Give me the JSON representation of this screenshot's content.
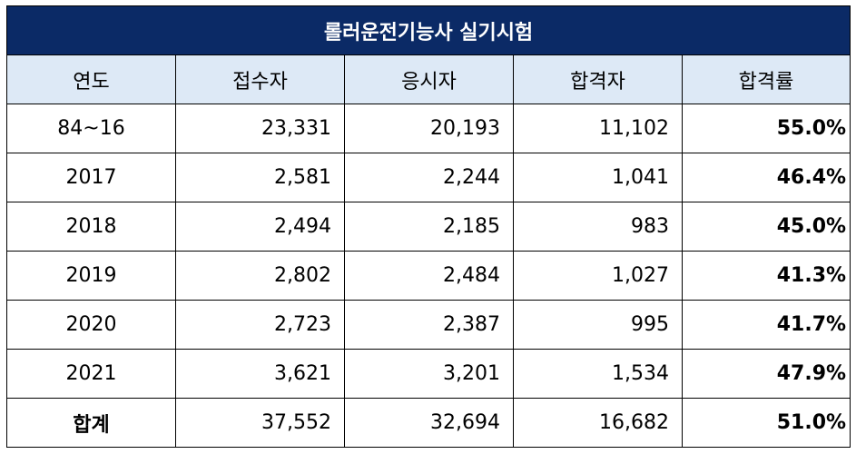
{
  "title": "롤러운전기능사 실기시험",
  "colors": {
    "title_bg": "#0b2a66",
    "header_bg": "#dde9f6",
    "title_text": "#ffffff",
    "border": "#000000"
  },
  "headers": [
    "연도",
    "접수자",
    "응시자",
    "합격자",
    "합격률"
  ],
  "rows": [
    {
      "year": "84~16",
      "applicants": "23,331",
      "examinees": "20,193",
      "passed": "11,102",
      "rate": "55.0%"
    },
    {
      "year": "2017",
      "applicants": "2,581",
      "examinees": "2,244",
      "passed": "1,041",
      "rate": "46.4%"
    },
    {
      "year": "2018",
      "applicants": "2,494",
      "examinees": "2,185",
      "passed": "983",
      "rate": "45.0%"
    },
    {
      "year": "2019",
      "applicants": "2,802",
      "examinees": "2,484",
      "passed": "1,027",
      "rate": "41.3%"
    },
    {
      "year": "2020",
      "applicants": "2,723",
      "examinees": "2,387",
      "passed": "995",
      "rate": "41.7%"
    },
    {
      "year": "2021",
      "applicants": "3,621",
      "examinees": "3,201",
      "passed": "1,534",
      "rate": "47.9%"
    }
  ],
  "total": {
    "year": "합계",
    "applicants": "37,552",
    "examinees": "32,694",
    "passed": "16,682",
    "rate": "51.0%"
  }
}
